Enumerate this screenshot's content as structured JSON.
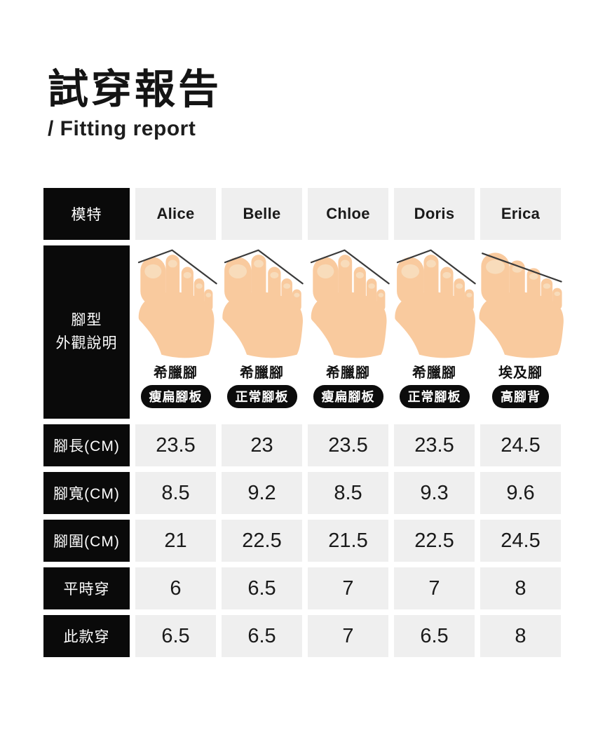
{
  "page": {
    "title": "試穿報告",
    "subtitle": "/ Fitting report"
  },
  "table": {
    "header_label": "模特",
    "models": [
      "Alice",
      "Belle",
      "Chloe",
      "Doris",
      "Erica"
    ],
    "foot_label_lines": [
      "腳型",
      "外觀說明"
    ],
    "foot_types": [
      {
        "shape": "greek",
        "shape_label": "希臘腳",
        "sole_label": "瘦扁腳板",
        "build": "narrow"
      },
      {
        "shape": "greek",
        "shape_label": "希臘腳",
        "sole_label": "正常腳板",
        "build": "normal"
      },
      {
        "shape": "greek",
        "shape_label": "希臘腳",
        "sole_label": "瘦扁腳板",
        "build": "narrow"
      },
      {
        "shape": "greek",
        "shape_label": "希臘腳",
        "sole_label": "正常腳板",
        "build": "normal"
      },
      {
        "shape": "egyptian",
        "shape_label": "埃及腳",
        "sole_label": "高腳背",
        "build": "wide"
      }
    ],
    "rows": [
      {
        "label": "腳長(CM)",
        "values": [
          "23.5",
          "23",
          "23.5",
          "23.5",
          "24.5"
        ]
      },
      {
        "label": "腳寬(CM)",
        "values": [
          "8.5",
          "9.2",
          "8.5",
          "9.3",
          "9.6"
        ]
      },
      {
        "label": "腳圍(CM)",
        "values": [
          "21",
          "22.5",
          "21.5",
          "22.5",
          "24.5"
        ]
      },
      {
        "label": "平時穿",
        "values": [
          "6",
          "6.5",
          "7",
          "7",
          "8"
        ]
      },
      {
        "label": "此款穿",
        "values": [
          "6.5",
          "6.5",
          "7",
          "6.5",
          "8"
        ]
      }
    ]
  },
  "colors": {
    "header_bg": "#0a0a0a",
    "cell_bg": "#efefef",
    "text": "#1a1a1a",
    "skin": "#f9ca9e",
    "nail": "#f8dcbb",
    "angle_line": "#3a3a3a"
  }
}
